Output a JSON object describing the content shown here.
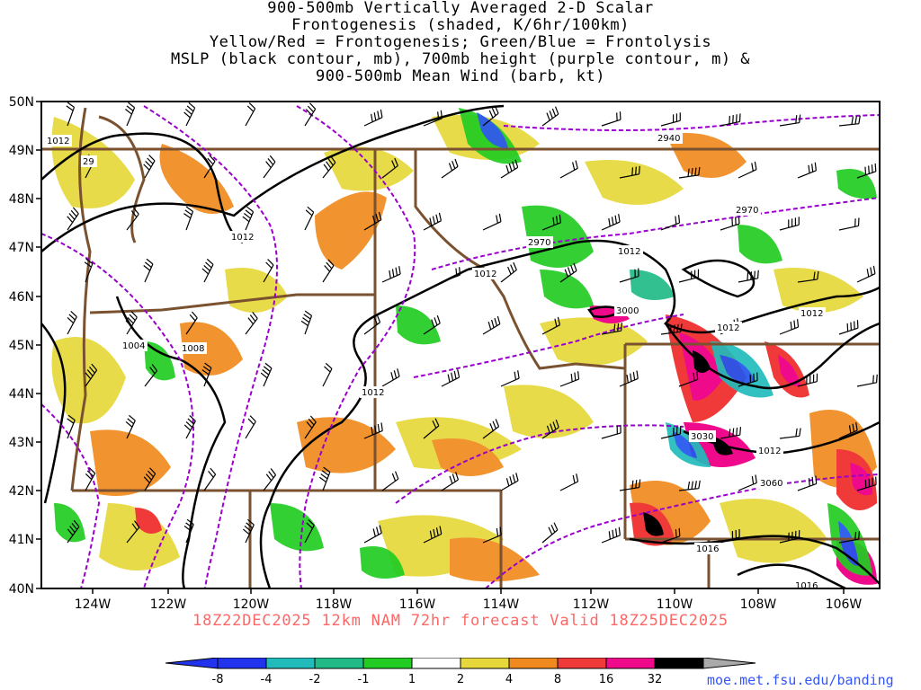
{
  "title_lines": [
    "900-500mb Vertically Averaged 2-D Scalar",
    "Frontogenesis (shaded, K/6hr/100km)",
    "Yellow/Red = Frontogenesis;  Green/Blue = Frontolysis",
    "MSLP (black contour, mb), 700mb height (purple contour, m) &",
    "900-500mb Mean Wind (barb, kt)"
  ],
  "subtitle": "18Z22DEC2025 12km NAM 72hr forecast Valid 18Z25DEC2025",
  "credit": "moe.met.fsu.edu/banding",
  "map": {
    "lat_labels": [
      "50N",
      "49N",
      "48N",
      "47N",
      "46N",
      "45N",
      "44N",
      "43N",
      "42N",
      "41N",
      "40N"
    ],
    "lon_labels": [
      "124W",
      "122W",
      "120W",
      "118W",
      "116W",
      "114W",
      "112W",
      "110W",
      "108W",
      "106W"
    ],
    "mslp_labels": [
      "1012",
      "1012",
      "1012",
      "1012",
      "1012",
      "1012",
      "1012",
      "1004",
      "1008",
      "1012",
      "1016",
      "1016"
    ],
    "height_labels": [
      "2940",
      "2970",
      "2970",
      "3000",
      "3030",
      "3060",
      "29"
    ],
    "colors": {
      "mslp": "#000000",
      "height": "#9900cc",
      "borders": "#7a5230",
      "frontogenesis": [
        "#e6d83a",
        "#f08a1e",
        "#f03a3a",
        "#ee0a8a",
        "#000000"
      ],
      "frontolysis": [
        "#22cc22",
        "#22bb88",
        "#22bbbb",
        "#2255ee"
      ]
    }
  },
  "colorbar": {
    "labels": [
      "-8",
      "-4",
      "-2",
      "-1",
      "1",
      "2",
      "4",
      "8",
      "16",
      "32"
    ],
    "colors": [
      "#2233ee",
      "#22bbbb",
      "#22bb88",
      "#22cc22",
      "#ffffff",
      "#e6d83a",
      "#f08a1e",
      "#f03a3a",
      "#ee0a8a",
      "#000000"
    ],
    "end_low": "#2233ee",
    "end_high": "#aaaaaa"
  }
}
